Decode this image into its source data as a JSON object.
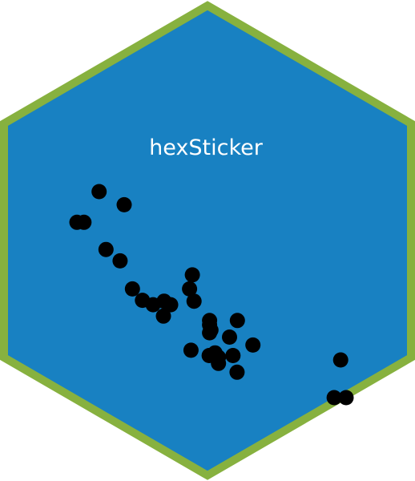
{
  "sticker": {
    "package_name": "hexSticker",
    "fill_color": "#1881C2",
    "border_color": "#87B13F",
    "text_color": "#FFFFFF",
    "point_color": "#000000"
  },
  "chart_data": {
    "type": "scatter",
    "title": "",
    "xlabel": "",
    "ylabel": "",
    "axes_visible": false,
    "grid": false,
    "xlim": [
      1.5,
      5.5
    ],
    "ylim": [
      10,
      34
    ],
    "series": [
      {
        "x": [
          2.62,
          2.875,
          2.32,
          3.215,
          3.44,
          3.46,
          3.57,
          3.19,
          3.15,
          3.44,
          3.44,
          4.07,
          3.73,
          3.78,
          5.25,
          5.424,
          5.345,
          2.2,
          1.615,
          1.835,
          2.465,
          3.52,
          3.435,
          3.84,
          3.845,
          1.935,
          2.14,
          1.513,
          3.17,
          2.77,
          3.57,
          2.78
        ],
        "y": [
          21.0,
          21.0,
          22.8,
          21.4,
          18.7,
          18.1,
          14.3,
          24.4,
          22.8,
          19.2,
          17.8,
          16.4,
          17.3,
          15.2,
          10.4,
          10.4,
          14.7,
          32.4,
          30.4,
          33.9,
          21.5,
          15.5,
          15.2,
          13.3,
          19.2,
          27.3,
          26.0,
          30.4,
          15.8,
          19.7,
          15.0,
          21.4
        ]
      }
    ]
  }
}
